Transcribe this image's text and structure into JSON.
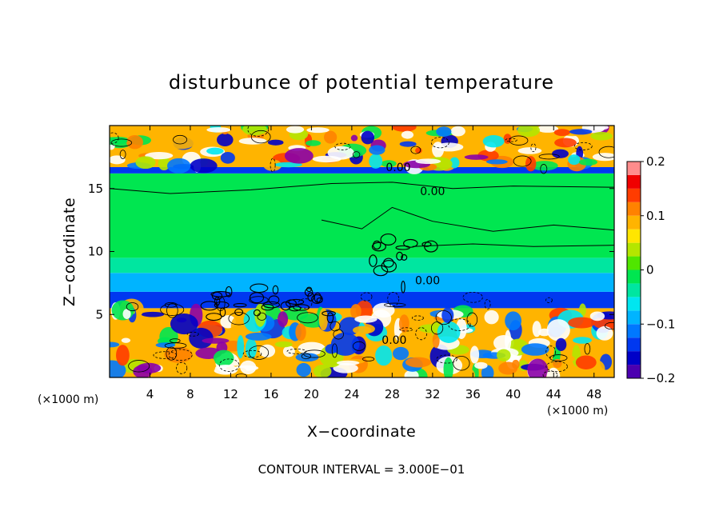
{
  "chart_data": {
    "type": "heatmap",
    "title": "disturbunce of potential temperature",
    "xlabel": "X−coordinate",
    "ylabel": "Z−coordinate",
    "x_unit_note_left": "(×1000 m)",
    "x_unit_note_right": "(×1000 m)",
    "footer": "CONTOUR INTERVAL = 3.000E−01",
    "xlim": [
      0,
      50
    ],
    "ylim": [
      0,
      20
    ],
    "x_ticks": [
      {
        "value": 4,
        "label": "4"
      },
      {
        "value": 8,
        "label": "8"
      },
      {
        "value": 12,
        "label": "12"
      },
      {
        "value": 16,
        "label": "16"
      },
      {
        "value": 20,
        "label": "20"
      },
      {
        "value": 24,
        "label": "24"
      },
      {
        "value": 28,
        "label": "28"
      },
      {
        "value": 32,
        "label": "32"
      },
      {
        "value": 36,
        "label": "36"
      },
      {
        "value": 40,
        "label": "40"
      },
      {
        "value": 44,
        "label": "44"
      },
      {
        "value": 48,
        "label": "48"
      }
    ],
    "y_ticks": [
      {
        "value": 5,
        "label": "5"
      },
      {
        "value": 10,
        "label": "10"
      },
      {
        "value": 15,
        "label": "15"
      }
    ],
    "colorbar": {
      "min": -0.2,
      "max": 0.2,
      "ticks": [
        {
          "value": 0.2,
          "label": "0.2"
        },
        {
          "value": 0.1,
          "label": "0.1"
        },
        {
          "value": 0,
          "label": "0"
        },
        {
          "value": -0.1,
          "label": "−0.1"
        },
        {
          "value": -0.2,
          "label": "−0.2"
        }
      ],
      "levels": [
        {
          "value": -0.2,
          "color": "#8a00a8"
        },
        {
          "value": -0.175,
          "color": "#4b00b0"
        },
        {
          "value": -0.15,
          "color": "#0000c8"
        },
        {
          "value": -0.125,
          "color": "#0038f0"
        },
        {
          "value": -0.1,
          "color": "#0078ff"
        },
        {
          "value": -0.075,
          "color": "#00b4ff"
        },
        {
          "value": -0.05,
          "color": "#00e6f0"
        },
        {
          "value": -0.025,
          "color": "#00e6a0"
        },
        {
          "value": 0,
          "color": "#00e650"
        },
        {
          "value": 0.025,
          "color": "#50e600"
        },
        {
          "value": 0.05,
          "color": "#b4e600"
        },
        {
          "value": 0.075,
          "color": "#ffe600"
        },
        {
          "value": 0.1,
          "color": "#ffb400"
        },
        {
          "value": 0.125,
          "color": "#ff8200"
        },
        {
          "value": 0.15,
          "color": "#ff3c00"
        },
        {
          "value": 0.175,
          "color": "#f00000"
        },
        {
          "value": 0.2,
          "color": "#ff8c8c"
        }
      ],
      "above_max_color": "#ffffff"
    },
    "contour_labels": [
      {
        "text": "0.00",
        "x": 28.6,
        "y": 16.7
      },
      {
        "text": "0.00",
        "x": 32.0,
        "y": 14.8
      },
      {
        "text": "0.00",
        "x": 31.5,
        "y": 7.7
      },
      {
        "text": "0.00",
        "x": 28.2,
        "y": 3.0
      }
    ],
    "field_bands": [
      {
        "y0": 0.0,
        "y1": 5.5,
        "level": 0.1,
        "note": "turbulent lower layer"
      },
      {
        "y0": 5.5,
        "y1": 6.8,
        "level": -0.125
      },
      {
        "y0": 6.8,
        "y1": 8.3,
        "level": -0.075
      },
      {
        "y0": 8.3,
        "y1": 9.5,
        "level": -0.025
      },
      {
        "y0": 9.5,
        "y1": 16.2,
        "level": 0.0
      },
      {
        "y0": 16.2,
        "y1": 16.7,
        "level": -0.125
      },
      {
        "y0": 16.7,
        "y1": 20.0,
        "level": 0.1,
        "note": "turbulent upper layer"
      }
    ]
  }
}
